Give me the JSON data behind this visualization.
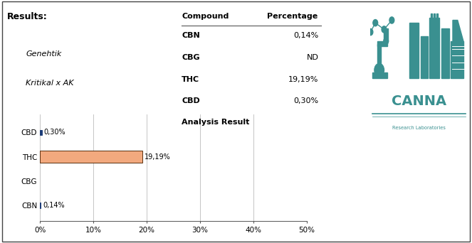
{
  "title": "Analysis Result",
  "results_label": "Results:",
  "genehtik_label": "Genehtik",
  "kritikal_label": "Kritikal x AK",
  "compounds": [
    "CBN",
    "CBG",
    "THC",
    "CBD"
  ],
  "values": [
    0.14,
    0.0,
    19.19,
    0.3
  ],
  "bar_labels": [
    "0,14%",
    "",
    "19,19%",
    "0,30%"
  ],
  "table_compounds": [
    "CBN",
    "CBG",
    "THC",
    "CBD"
  ],
  "table_percentages": [
    "0,14%",
    "ND",
    "19,19%",
    "0,30%"
  ],
  "xlim": [
    0,
    50
  ],
  "xticks": [
    0,
    10,
    20,
    30,
    40,
    50
  ],
  "xtick_labels": [
    "0%",
    "10%",
    "20%",
    "30%",
    "40%",
    "50%"
  ],
  "thc_bar_color": "#F2A97E",
  "thc_bar_edge_color": "#5A3010",
  "cbd_bar_color": "#1C3C78",
  "cbg_bar_color": "#808080",
  "cbn_bar_color": "#1C3C78",
  "background_color": "#FFFFFF",
  "grid_color": "#BBBBBB",
  "border_color": "#555555",
  "text_color": "#000000",
  "teal_color": "#3A9090",
  "analysis_result_fontsize": 8,
  "table_header_fontsize": 8,
  "results_fontsize": 9,
  "bar_label_fontsize": 7,
  "tick_fontsize": 7.5,
  "compound_label_fontsize": 7.5
}
